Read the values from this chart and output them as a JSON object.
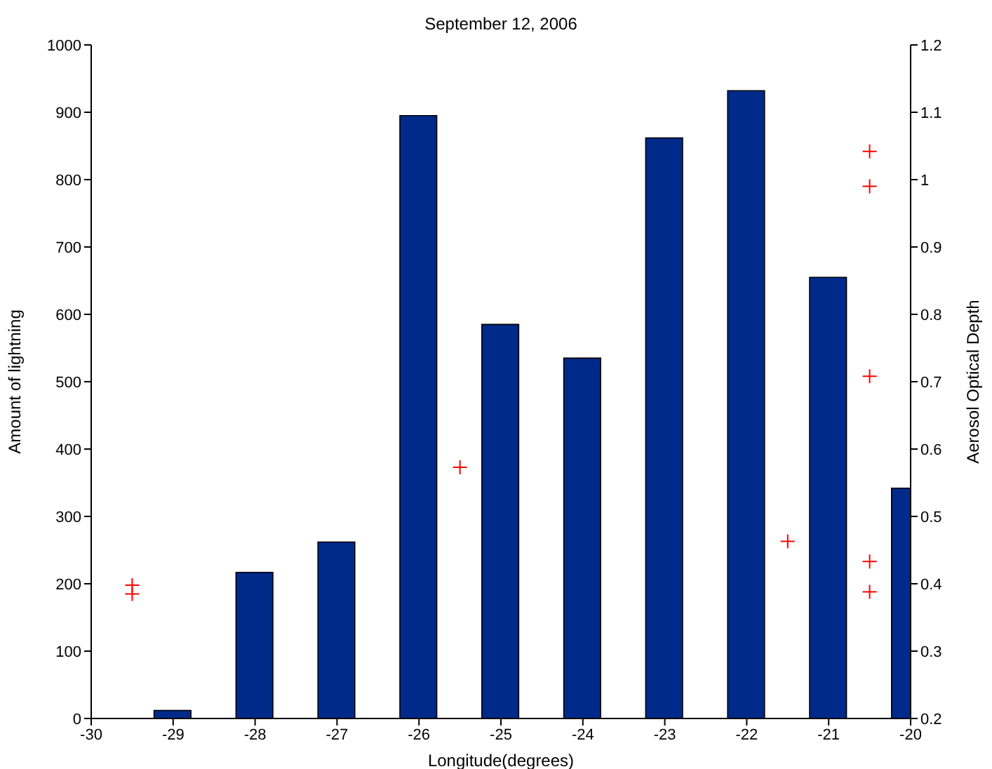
{
  "chart_data": {
    "type": "bar",
    "title": "September 12, 2006",
    "xlabel": "Longitude(degrees)",
    "ylabel": "Amount of lightning",
    "y2label": "Aerosol Optical Depth",
    "x": [
      -29,
      -28,
      -27,
      -26,
      -25,
      -24,
      -23,
      -22,
      -21,
      -20
    ],
    "series": [
      {
        "color": "#002a8a",
        "values": [
          12,
          217,
          262,
          895,
          585,
          535,
          862,
          932,
          655,
          342
        ]
      },
      {
        "type": "scatter",
        "axis": "y2",
        "color": "#ff0000",
        "marker": "cross",
        "x": [
          -29.5,
          -29.5,
          -25.5,
          -21.5,
          -20.5,
          -20.5,
          -20.5,
          -20.5,
          -20.5
        ],
        "values": [
          0.398,
          0.385,
          0.573,
          0.463,
          1.042,
          0.99,
          0.708,
          0.433,
          0.388
        ]
      }
    ],
    "xlim": [
      -30,
      -20
    ],
    "xticks": [
      -30,
      -29,
      -28,
      -27,
      -26,
      -25,
      -24,
      -23,
      -22,
      -21,
      -20
    ],
    "ylim": [
      0,
      1000
    ],
    "yticks": [
      0,
      100,
      200,
      300,
      400,
      500,
      600,
      700,
      800,
      900,
      1000
    ],
    "y2lim": [
      0.2,
      1.2
    ],
    "y2ticks": [
      0.2,
      0.3,
      0.4,
      0.5,
      0.6,
      0.7,
      0.8,
      0.9,
      1,
      1.1,
      1.2
    ],
    "grid": false,
    "legend": false
  }
}
